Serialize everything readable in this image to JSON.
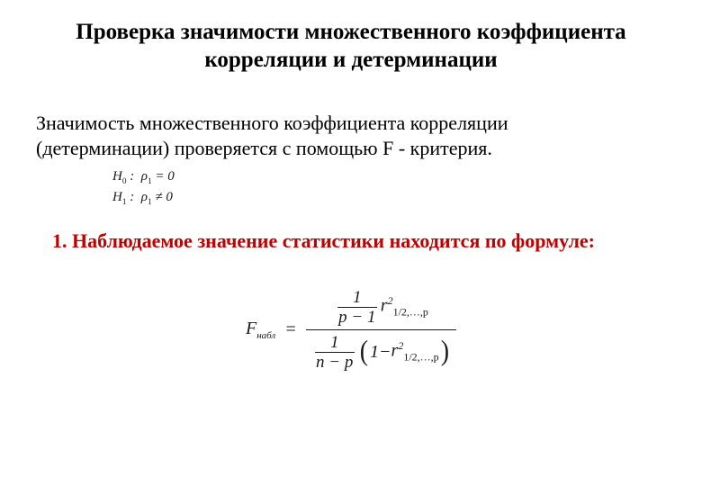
{
  "title": {
    "line1": "Проверка значимости множественного коэффициента",
    "line2": "корреляции и детерминации"
  },
  "body": {
    "line1": "   Значимость множественного коэффициента корреляции",
    "line2": "(детерминации) проверяется с помощью F - критерия."
  },
  "hypotheses": {
    "h0_left": "H",
    "h0_sub": "0",
    "h0_colon": " : ",
    "h0_rho": "ρ",
    "h0_rhosub": "1",
    "h0_eq": " = 0",
    "h1_left": "H",
    "h1_sub": "1",
    "h1_colon": " : ",
    "h1_rho": "ρ",
    "h1_rhosub": "1",
    "h1_eq": " ≠ 0"
  },
  "step": "1. Наблюдаемое значение статистики находится по формуле:",
  "formula": {
    "lhs_F": "F",
    "lhs_sub": "набл",
    "equals": "=",
    "num_frac_top": "1",
    "num_frac_bot_left": "p",
    "num_frac_bot_op": " − ",
    "num_frac_bot_right": "1",
    "num_r": "r",
    "num_r_sup": "2",
    "num_r_sub": "1/2,…,p",
    "den_frac_top": "1",
    "den_frac_bot_left": "n",
    "den_frac_bot_op": " − ",
    "den_frac_bot_right": "p",
    "den_one": "1",
    "den_minus": " − ",
    "den_r": "r",
    "den_r_sup": "2",
    "den_r_sub": "1/2,…,p"
  },
  "colors": {
    "step_color": "#c00000",
    "text_color": "#000000",
    "math_color": "#1a1a1a"
  }
}
